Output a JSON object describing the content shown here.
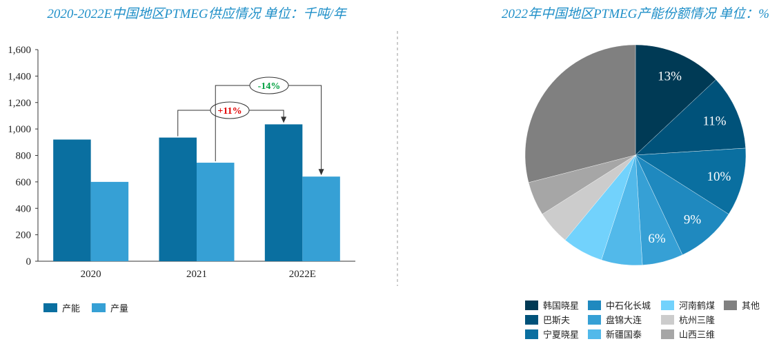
{
  "chart_data": [
    {
      "type": "bar",
      "title": "2020-2022E中国地区PTMEG供应情况 单位：千吨/年",
      "categories": [
        "2020",
        "2021",
        "2022E"
      ],
      "series": [
        {
          "name": "产能",
          "values": [
            920,
            935,
            1035
          ],
          "color": "#0a6fa0"
        },
        {
          "name": "产量",
          "values": [
            600,
            745,
            640
          ],
          "color": "#36a0d5"
        }
      ],
      "ylim": [
        0,
        1600
      ],
      "yticks": [
        "0",
        "200",
        "400",
        "600",
        "800",
        "1,000",
        "1,200",
        "1,400",
        "1,600"
      ],
      "legend": "bottom-left",
      "annotations": [
        {
          "text": "+11%",
          "color": "#e00000",
          "from": "2021 产能",
          "to": "2022E 产能"
        },
        {
          "text": "-14%",
          "color": "#00a040",
          "from": "2021 产量",
          "to": "2022E 产量"
        }
      ]
    },
    {
      "type": "pie",
      "title": "2022年中国地区PTMEG产能份额情况 单位：%",
      "slices": [
        {
          "name": "韩国晓星",
          "value": 13,
          "label": "13%",
          "color": "#003a55"
        },
        {
          "name": "巴斯夫",
          "value": 11,
          "label": "11%",
          "color": "#00527a"
        },
        {
          "name": "宁夏晓星",
          "value": 10,
          "label": "10%",
          "color": "#0a6fa0"
        },
        {
          "name": "中石化长城",
          "value": 9,
          "label": "9%",
          "color": "#1f89bf"
        },
        {
          "name": "盘锦大连",
          "value": 6,
          "label": "6%",
          "color": "#36a0d5"
        },
        {
          "name": "新疆国泰",
          "value": 6,
          "label": "",
          "color": "#52b9ea"
        },
        {
          "name": "河南鹤煤",
          "value": 6,
          "label": "",
          "color": "#72d2fc"
        },
        {
          "name": "杭州三隆",
          "value": 5,
          "label": "",
          "color": "#cccccc"
        },
        {
          "name": "山西三维",
          "value": 5,
          "label": "",
          "color": "#a6a6a6"
        },
        {
          "name": "其他",
          "value": 29,
          "label": "",
          "color": "#808080"
        }
      ],
      "legend_order": [
        "韩国晓星",
        "巴斯夫",
        "宁夏晓星",
        "中石化长城",
        "盘锦大连",
        "新疆国泰",
        "河南鹤煤",
        "杭州三隆",
        "山西三维",
        "其他"
      ],
      "legend": "bottom"
    }
  ]
}
